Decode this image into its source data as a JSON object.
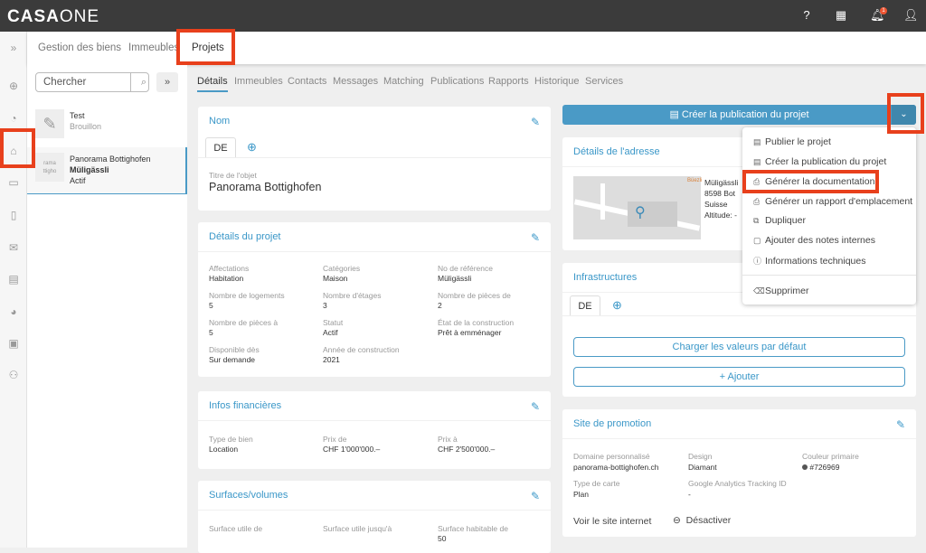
{
  "app": {
    "logo": "CASAONE",
    "logo_bold": "CASA",
    "logo_light": "ONE",
    "notification_count": "1"
  },
  "nav": {
    "collapse": "»",
    "tabs": [
      "Gestion des biens",
      "Immeubles",
      "Projets"
    ],
    "active": "Projets"
  },
  "list": {
    "search_placeholder": "Chercher",
    "expand": "»",
    "items": [
      {
        "title": "Test",
        "subtitle": "Brouillon"
      },
      {
        "title": "Panorama Bottighofen",
        "subtitle": "Müligässli",
        "status": "Actif",
        "thumb_text": "rama\nttigho"
      }
    ]
  },
  "subtabs": [
    "Détails",
    "Immeubles",
    "Contacts",
    "Messages",
    "Matching",
    "Publications",
    "Rapports",
    "Historique",
    "Services"
  ],
  "nom": {
    "title": "Nom",
    "lang": "DE",
    "field_label": "Titre de l'objet",
    "field_value": "Panorama Bottighofen"
  },
  "details": {
    "title": "Détails du projet",
    "fields": [
      {
        "label": "Affectations",
        "value": "Habitation"
      },
      {
        "label": "Catégories",
        "value": "Maison"
      },
      {
        "label": "No de référence",
        "value": "Müligässli"
      },
      {
        "label": "Nombre de logements",
        "value": "5"
      },
      {
        "label": "Nombre d'étages",
        "value": "3"
      },
      {
        "label": "Nombre de pièces de",
        "value": "2"
      },
      {
        "label": "Nombre de pièces à",
        "value": "5"
      },
      {
        "label": "Statut",
        "value": "Actif"
      },
      {
        "label": "État de la construction",
        "value": "Prêt à emménager"
      },
      {
        "label": "Disponible dès",
        "value": "Sur demande"
      },
      {
        "label": "Année de construction",
        "value": "2021"
      }
    ]
  },
  "finance": {
    "title": "Infos financières",
    "fields": [
      {
        "label": "Type de bien",
        "value": "Location"
      },
      {
        "label": "Prix de",
        "value": "CHF 1'000'000.–"
      },
      {
        "label": "Prix à",
        "value": "CHF 2'500'000.–"
      }
    ]
  },
  "surfaces": {
    "title": "Surfaces/volumes",
    "fields": [
      {
        "label": "Surface utile de",
        "value": ""
      },
      {
        "label": "Surface utile jusqu'à",
        "value": ""
      },
      {
        "label": "Surface habitable de",
        "value": "50"
      }
    ]
  },
  "publish_button": {
    "label": "Créer la publication du projet"
  },
  "dropdown": {
    "items": [
      "Publier le projet",
      "Créer la publication du projet",
      "Générer la documentation",
      "Générer un rapport d'emplacement",
      "Dupliquer",
      "Ajouter des notes internes",
      "Informations techniques",
      "Supprimer"
    ]
  },
  "address": {
    "title": "Détails de l'adresse",
    "lines": [
      "Müligässli",
      "8598 Bot",
      "Suisse",
      "Altitude: -"
    ],
    "map_label": "Büezli"
  },
  "infra": {
    "title": "Infrastructures",
    "lang": "DE",
    "load_defaults": "Charger les valeurs par défaut",
    "add": "+ Ajouter"
  },
  "promo": {
    "title": "Site de promotion",
    "fields": [
      {
        "label": "Domaine personnalisé",
        "value": "panorama-bottighofen.ch"
      },
      {
        "label": "Design",
        "value": "Diamant"
      },
      {
        "label": "Couleur primaire",
        "value": "#726969"
      },
      {
        "label": "Type de carte",
        "value": "Plan"
      },
      {
        "label": "Google Analytics Tracking ID",
        "value": "-"
      }
    ],
    "view_site": "Voir le site internet",
    "deactivate": "Désactiver"
  },
  "colors": {
    "accent": "#3a97c8",
    "highlight": "#e8401c",
    "topbar": "#3b3b3b",
    "primary_swatch": "#726969"
  }
}
